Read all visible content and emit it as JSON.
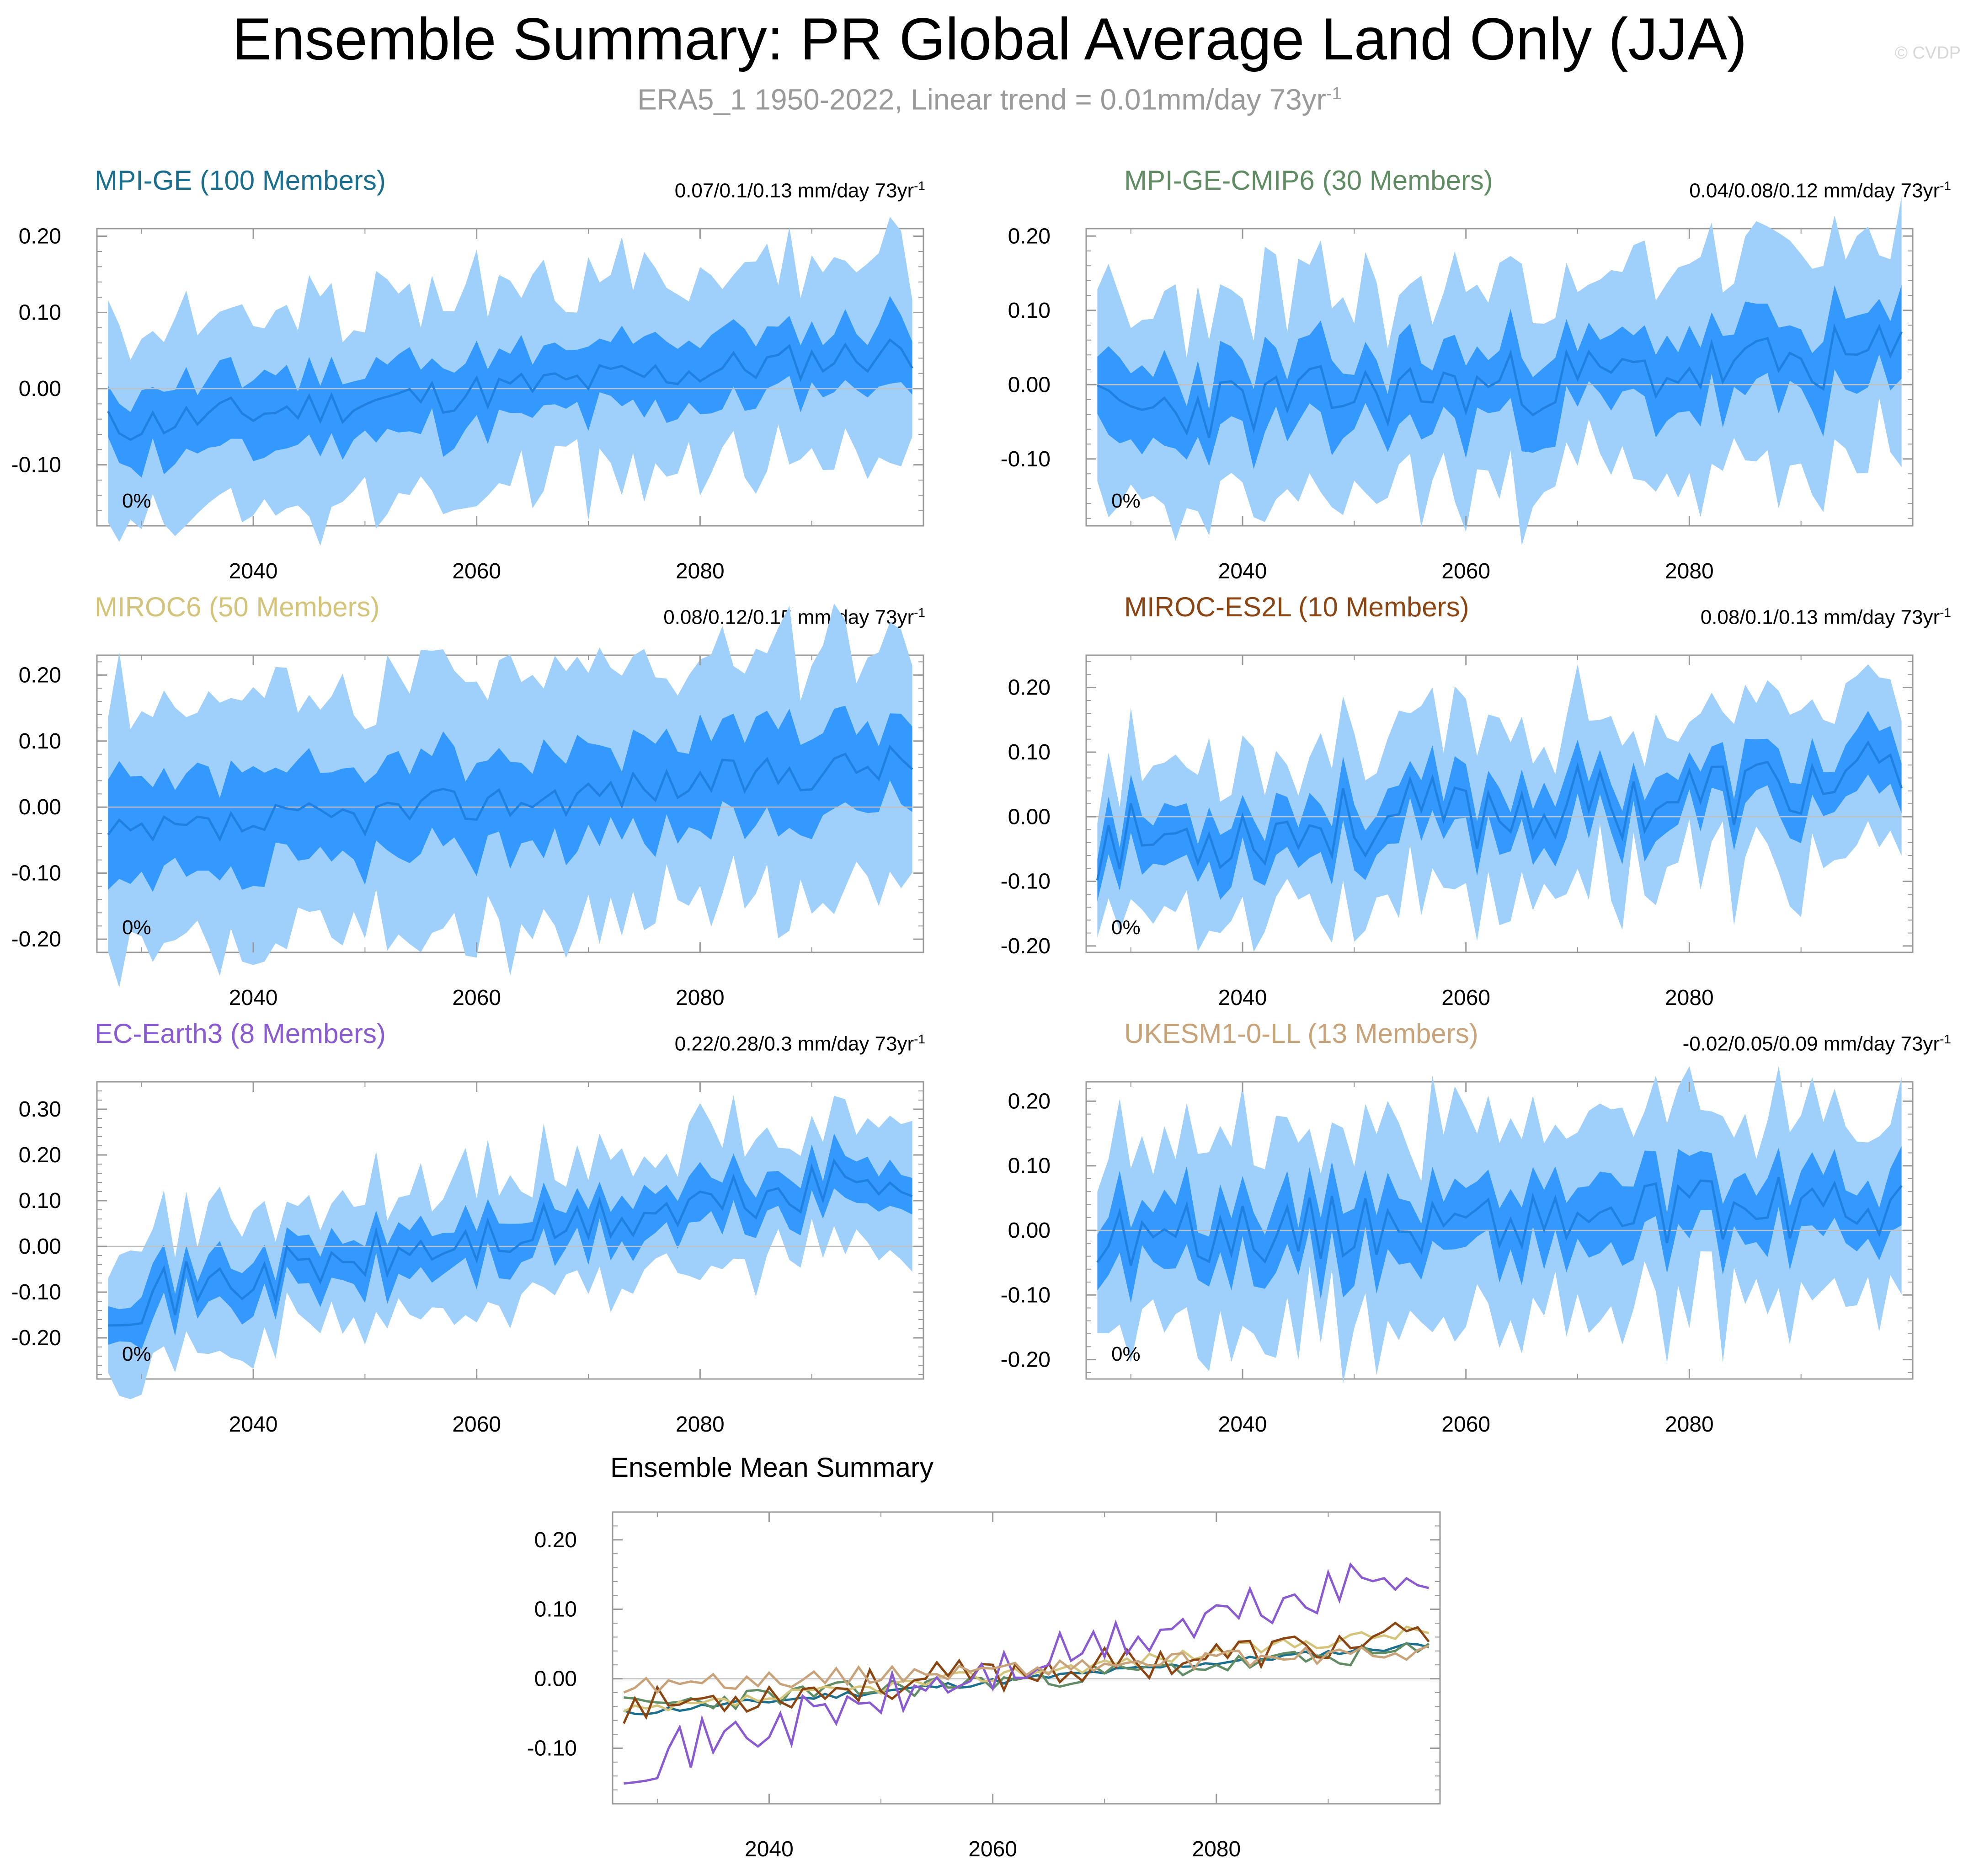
{
  "title": "Ensemble Summary: PR Global Average Land Only (JJA)",
  "subtitle": {
    "text": "ERA5_1 1950-2022, Linear trend = 0.01mm/day 73yr",
    "superscript": "-1"
  },
  "watermark": "© CVDP",
  "colors": {
    "outer_band": "#9fd0fc",
    "inner_band": "#3399ff",
    "mean_line": "#1f80e0",
    "zero_line": "#c0c0c0",
    "axis": "#999999"
  },
  "chart_data": [
    {
      "type": "area",
      "id": "mpi-ge",
      "title": "MPI-GE (100 Members)",
      "title_color": "#1a6e8e",
      "stat": "0.07/0.1/0.13 mm/day 73yr",
      "stat_superscript": "-1",
      "pct_label": "0%",
      "xlim": [
        2026,
        2100
      ],
      "x_ticks": [
        "2040",
        "2060",
        "2080"
      ],
      "x_tick_values": [
        2040,
        2060,
        2080
      ],
      "ylim": [
        -0.18,
        0.21
      ],
      "y_ticks": [
        "0.20",
        "0.10",
        "0.00",
        "-0.10"
      ],
      "y_tick_values": [
        0.2,
        0.1,
        0.0,
        -0.1
      ],
      "trend": 0.1,
      "noise": 0.05,
      "mean_start": -0.05,
      "inner_w": 0.045,
      "outer_w": 0.095,
      "seed": 11
    },
    {
      "type": "area",
      "id": "mpi-ge-cmip6",
      "title": "MPI-GE-CMIP6 (30 Members)",
      "title_color": "#5f8c62",
      "stat": "0.04/0.08/0.12 mm/day 73yr",
      "stat_superscript": "-1",
      "pct_label": "0%",
      "xlim": [
        2026,
        2100
      ],
      "x_ticks": [
        "2040",
        "2060",
        "2080"
      ],
      "x_tick_values": [
        2040,
        2060,
        2080
      ],
      "ylim": [
        -0.19,
        0.21
      ],
      "y_ticks": [
        "0.20",
        "0.10",
        "0.00",
        "-0.10"
      ],
      "y_tick_values": [
        0.2,
        0.1,
        0.0,
        -0.1
      ],
      "trend": 0.08,
      "noise": 0.09,
      "mean_start": -0.04,
      "inner_w": 0.05,
      "outer_w": 0.1,
      "seed": 23
    },
    {
      "type": "area",
      "id": "miroc6",
      "title": "MIROC6 (50 Members)",
      "title_color": "#d4c47a",
      "stat": "0.08/0.12/0.15 mm/day 73yr",
      "stat_superscript": "-1",
      "pct_label": "0%",
      "xlim": [
        2026,
        2100
      ],
      "x_ticks": [
        "2040",
        "2060",
        "2080"
      ],
      "x_tick_values": [
        2040,
        2060,
        2080
      ],
      "ylim": [
        -0.22,
        0.23
      ],
      "y_ticks": [
        "0.20",
        "0.10",
        "0.00",
        "-0.10",
        "-0.20"
      ],
      "y_tick_values": [
        0.2,
        0.1,
        0.0,
        -0.1,
        -0.2
      ],
      "trend": 0.12,
      "noise": 0.06,
      "mean_start": -0.05,
      "inner_w": 0.07,
      "outer_w": 0.13,
      "seed": 37
    },
    {
      "type": "area",
      "id": "miroc-es2l",
      "title": "MIROC-ES2L (10 Members)",
      "title_color": "#8b4513",
      "stat": "0.08/0.1/0.13 mm/day 73yr",
      "stat_superscript": "-1",
      "pct_label": "0%",
      "xlim": [
        2026,
        2100
      ],
      "x_ticks": [
        "2040",
        "2060",
        "2080"
      ],
      "x_tick_values": [
        2040,
        2060,
        2080
      ],
      "ylim": [
        -0.21,
        0.25
      ],
      "y_ticks": [
        "0.20",
        "0.10",
        "0.00",
        "-0.10",
        "-0.20"
      ],
      "y_tick_values": [
        0.2,
        0.1,
        0.0,
        -0.1,
        -0.2
      ],
      "trend": 0.1,
      "noise": 0.12,
      "mean_start": -0.04,
      "inner_w": 0.04,
      "outer_w": 0.09,
      "seed": 53
    },
    {
      "type": "area",
      "id": "ec-earth3",
      "title": "EC-Earth3 (8 Members)",
      "title_color": "#8a5ad0",
      "stat": "0.22/0.28/0.3 mm/day 73yr",
      "stat_superscript": "-1",
      "pct_label": "0%",
      "xlim": [
        2026,
        2100
      ],
      "x_ticks": [
        "2040",
        "2060",
        "2080"
      ],
      "x_tick_values": [
        2040,
        2060,
        2080
      ],
      "ylim": [
        -0.29,
        0.36
      ],
      "y_ticks": [
        "0.30",
        "0.20",
        "0.10",
        "0.00",
        "-0.10",
        "-0.20"
      ],
      "y_tick_values": [
        0.3,
        0.2,
        0.1,
        0.0,
        -0.1,
        -0.2
      ],
      "trend": 0.28,
      "noise": 0.12,
      "mean_start": -0.12,
      "inner_w": 0.05,
      "outer_w": 0.1,
      "seed": 71
    },
    {
      "type": "area",
      "id": "ukesm1-0-ll",
      "title": "UKESM1-0-LL (13 Members)",
      "title_color": "#c8a278",
      "stat": "-0.02/0.05/0.09 mm/day 73yr",
      "stat_superscript": "-1",
      "pct_label": "0%",
      "xlim": [
        2026,
        2100
      ],
      "x_ticks": [
        "2040",
        "2060",
        "2080"
      ],
      "x_tick_values": [
        2040,
        2060,
        2080
      ],
      "ylim": [
        -0.23,
        0.23
      ],
      "y_ticks": [
        "0.20",
        "0.10",
        "0.00",
        "-0.10",
        "-0.20"
      ],
      "y_tick_values": [
        0.2,
        0.1,
        0.0,
        -0.1,
        -0.2
      ],
      "trend": 0.05,
      "noise": 0.1,
      "mean_start": -0.01,
      "inner_w": 0.05,
      "outer_w": 0.11,
      "seed": 89
    },
    {
      "type": "line",
      "id": "ensemble-mean-summary",
      "title": "Ensemble Mean Summary",
      "xlim": [
        2026,
        2100
      ],
      "x_ticks": [
        "2040",
        "2060",
        "2080"
      ],
      "x_tick_values": [
        2040,
        2060,
        2080
      ],
      "ylim": [
        -0.18,
        0.24
      ],
      "y_ticks": [
        "0.20",
        "0.10",
        "0.00",
        "-0.10"
      ],
      "y_tick_values": [
        0.2,
        0.1,
        0.0,
        -0.1
      ],
      "series": [
        {
          "name": "MPI-GE",
          "color": "#1a6e8e",
          "trend": 0.1,
          "noise": 0.01,
          "start": -0.05,
          "seed": 11
        },
        {
          "name": "MPI-GE-CMIP6",
          "color": "#5f8c62",
          "trend": 0.08,
          "noise": 0.03,
          "start": -0.04,
          "seed": 23
        },
        {
          "name": "MIROC6",
          "color": "#d4c47a",
          "trend": 0.12,
          "noise": 0.02,
          "start": -0.05,
          "seed": 37
        },
        {
          "name": "MIROC-ES2L",
          "color": "#8b4513",
          "trend": 0.1,
          "noise": 0.05,
          "start": -0.04,
          "seed": 53
        },
        {
          "name": "EC-Earth3",
          "color": "#8a5ad0",
          "trend": 0.28,
          "noise": 0.07,
          "start": -0.12,
          "seed": 71
        },
        {
          "name": "UKESM1-0-LL",
          "color": "#c8a278",
          "trend": 0.05,
          "noise": 0.025,
          "start": -0.01,
          "seed": 89
        }
      ]
    }
  ]
}
